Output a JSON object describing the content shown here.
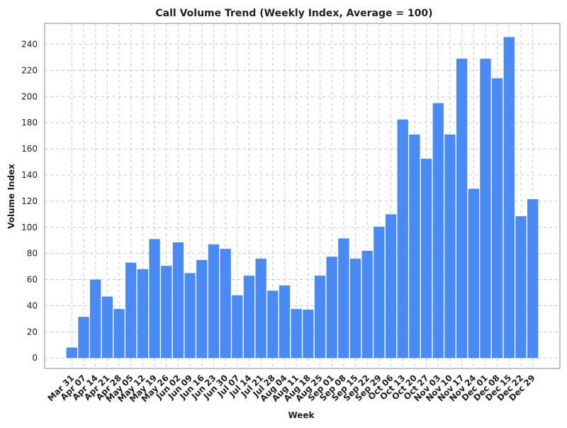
{
  "chart_data": {
    "type": "bar",
    "title": "Call Volume Trend (Weekly Index, Average = 100)",
    "x_label": "Week",
    "y_label": "Volume Index",
    "categories": [
      "Mar 31",
      "Apr 07",
      "Apr 14",
      "Apr 21",
      "Apr 28",
      "May 05",
      "May 12",
      "May 19",
      "May 26",
      "Jun 02",
      "Jun 09",
      "Jun 16",
      "Jun 23",
      "Jun 30",
      "Jul 07",
      "Jul 14",
      "Jul 21",
      "Jul 28",
      "Aug 04",
      "Aug 11",
      "Aug 18",
      "Aug 25",
      "Sep 01",
      "Sep 08",
      "Sep 15",
      "Sep 22",
      "Sep 29",
      "Oct 06",
      "Oct 13",
      "Oct 20",
      "Oct 27",
      "Nov 03",
      "Nov 10",
      "Nov 17",
      "Nov 24",
      "Dec 01",
      "Dec 08",
      "Dec 15",
      "Dec 22",
      "Dec 29"
    ],
    "values": [
      8,
      31.5,
      60,
      47,
      37.5,
      73,
      68,
      91,
      70.5,
      88.5,
      65,
      75,
      87,
      83.5,
      48,
      63,
      76,
      51.5,
      55.5,
      37.5,
      37,
      63,
      77.5,
      91.5,
      76,
      82,
      100.5,
      110,
      182.5,
      171,
      152.5,
      195,
      171,
      229,
      129.5,
      229,
      214,
      245.5,
      108.5,
      121.5
    ],
    "color": "#4a8af4",
    "ylim": [
      -8,
      256
    ],
    "yticks": [
      0,
      20,
      40,
      60,
      80,
      100,
      120,
      140,
      160,
      180,
      200,
      220,
      240
    ],
    "grid": true
  }
}
